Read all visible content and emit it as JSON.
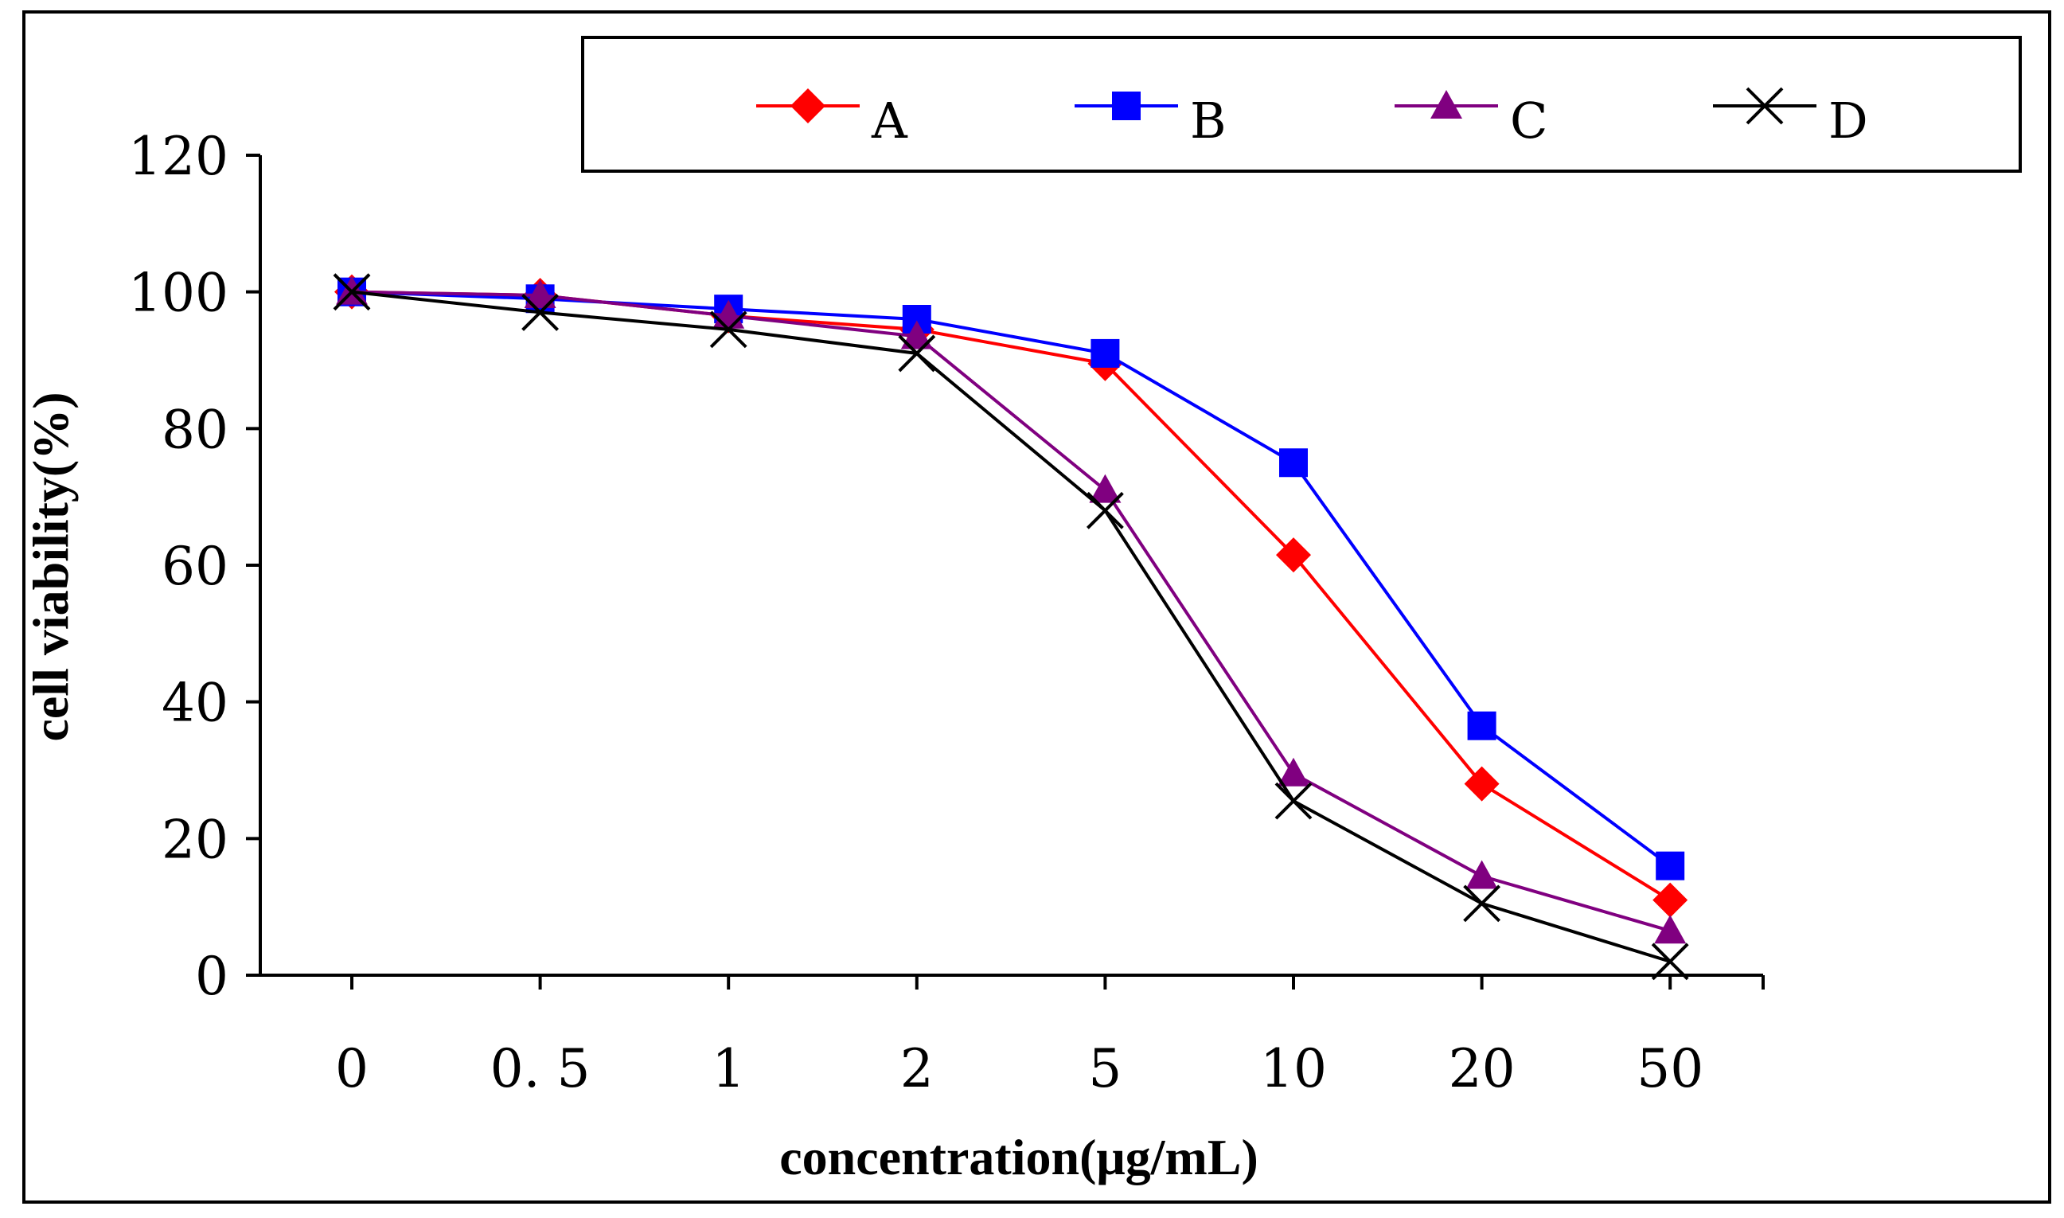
{
  "chart_data": {
    "type": "line",
    "title": "",
    "xlabel": "concentration(μg/mL)",
    "ylabel": "cell viability(%)",
    "categories": [
      "0",
      "0. 5",
      "1",
      "2",
      "5",
      "10",
      "20",
      "50"
    ],
    "ylim": [
      0,
      120
    ],
    "yticks": [
      "0",
      "20",
      "40",
      "60",
      "80",
      "100",
      "120"
    ],
    "grid": false,
    "legend_position": "top",
    "series": [
      {
        "name": "A",
        "color": "#ff0000",
        "marker": "diamond",
        "values": [
          100,
          99.5,
          96.5,
          94.5,
          89.5,
          61.5,
          28,
          11
        ]
      },
      {
        "name": "B",
        "color": "#0000ff",
        "marker": "square",
        "values": [
          100,
          99,
          97.5,
          96,
          91,
          75,
          36.5,
          16
        ]
      },
      {
        "name": "C",
        "color": "#800080",
        "marker": "triangle",
        "values": [
          100,
          99.5,
          96.5,
          93.5,
          71,
          29.5,
          14.5,
          6.5
        ]
      },
      {
        "name": "D",
        "color": "#000000",
        "marker": "x",
        "values": [
          100,
          97,
          94.5,
          91,
          68,
          25.5,
          10.5,
          2
        ]
      }
    ]
  }
}
